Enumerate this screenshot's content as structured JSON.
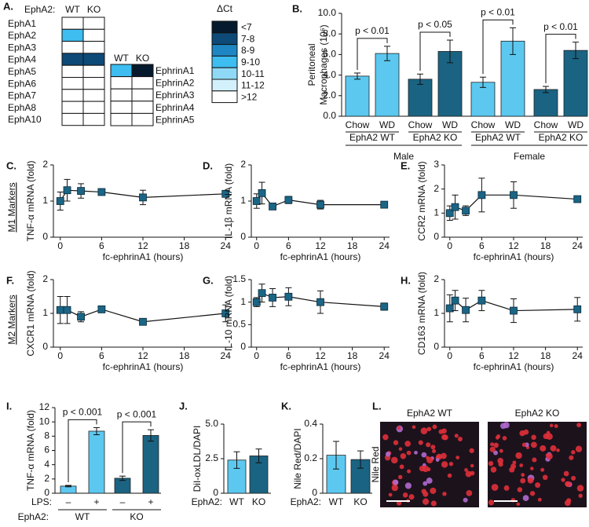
{
  "chart_data": [
    {
      "type": "heatmap",
      "panel": "A.",
      "header": "EphA2:",
      "columns": [
        "WT",
        "KO"
      ],
      "tables": [
        {
          "rows": [
            "EphA1",
            "EphA2",
            "EphA3",
            "EphA4",
            "EphA5",
            "EphA6",
            "EphA7",
            "EphA8",
            "EphA10"
          ],
          "cells": [
            [
              ">12",
              ">12"
            ],
            [
              "9-10",
              ">12"
            ],
            [
              ">12",
              ">12"
            ],
            [
              "7-8",
              "7-8"
            ],
            [
              ">12",
              ">12"
            ],
            [
              ">12",
              ">12"
            ],
            [
              ">12",
              ">12"
            ],
            [
              ">12",
              ">12"
            ],
            [
              ">12",
              ">12"
            ]
          ]
        },
        {
          "rows": [
            "EphrinA1",
            "EphrinA2",
            "EphrinA3",
            "EphrinA4",
            "EphrinA5"
          ],
          "cells": [
            [
              "9-10",
              "<7"
            ],
            [
              ">12",
              ">12"
            ],
            [
              ">12",
              ">12"
            ],
            [
              ">12",
              ">12"
            ],
            [
              ">12",
              ">12"
            ]
          ]
        }
      ],
      "legend_title": "ΔCt",
      "legend": [
        {
          "label": "<7",
          "color": "#061a2e"
        },
        {
          "label": "7-8",
          "color": "#0d4a78"
        },
        {
          "label": "8-9",
          "color": "#1e86c3"
        },
        {
          "label": "9-10",
          "color": "#3dbdf0"
        },
        {
          "label": "10-11",
          "color": "#8fd9f6"
        },
        {
          "label": "11-12",
          "color": "#d3f1fc"
        },
        {
          "label": ">12",
          "color": "#ffffff"
        }
      ]
    },
    {
      "type": "bar",
      "panel": "B.",
      "ylabel": [
        "Peritoneal",
        "Macrophages (10⁶)"
      ],
      "categories": [
        "Chow",
        "WD",
        "Chow",
        "WD",
        "Chow",
        "WD",
        "Chow",
        "WD"
      ],
      "values": [
        3.9,
        6.1,
        3.6,
        6.3,
        3.3,
        7.3,
        2.6,
        6.4
      ],
      "errors": [
        0.3,
        0.7,
        0.5,
        1.1,
        0.5,
        1.3,
        0.3,
        0.8
      ],
      "colors": [
        "#5cc8f0",
        "#5cc8f0",
        "#1a6382",
        "#1a6382",
        "#5cc8f0",
        "#5cc8f0",
        "#1a6382",
        "#1a6382"
      ],
      "ylim": [
        0,
        10
      ],
      "yticks": [
        {
          "value": 0,
          "label": "0.0"
        },
        {
          "value": 2,
          "label": "2.0"
        },
        {
          "value": 4,
          "label": "4.0"
        },
        {
          "value": 6,
          "label": "6.0"
        },
        {
          "value": 8,
          "label": "8.0"
        },
        {
          "value": 10,
          "label": "10.0"
        }
      ],
      "genotypes": [
        "EphA2 WT",
        "EphA2 KO",
        "EphA2 WT",
        "EphA2 KO"
      ],
      "sexes": [
        "Male",
        "Female"
      ],
      "annotations": [
        "p < 0.01",
        "p < 0.05",
        "p < 0.01",
        "p < 0.01"
      ]
    },
    {
      "type": "line",
      "panel": "C.",
      "group_label": "M1 Markers",
      "ylabel": "TNF-α mRNA (fold)",
      "xlabel": "fc-ephrinA1 (hours)",
      "x": [
        0,
        1,
        3,
        6,
        12,
        24
      ],
      "values": [
        1.0,
        1.3,
        1.28,
        1.25,
        1.1,
        1.2
      ],
      "errors": [
        0.25,
        0.3,
        0.2,
        0.07,
        0.2,
        0.05
      ],
      "color": "#1b6585",
      "xlim": [
        -1,
        25
      ],
      "xticks": [
        0,
        6,
        12,
        18,
        24
      ],
      "ylim": [
        0,
        2
      ],
      "yticks": [
        0,
        1,
        2
      ]
    },
    {
      "type": "line",
      "panel": "D.",
      "ylabel": "IL-1β mRNA (fold)",
      "xlabel": "fc-ephrinA1 (hours)",
      "x": [
        0,
        1,
        3,
        6,
        12,
        24
      ],
      "values": [
        1.0,
        1.22,
        0.85,
        1.03,
        0.9,
        0.9
      ],
      "errors": [
        0.2,
        0.3,
        0.05,
        0.1,
        0.12,
        0.05
      ],
      "color": "#1b6585",
      "xlim": [
        -1,
        25
      ],
      "xticks": [
        0,
        6,
        12,
        18,
        24
      ],
      "ylim": [
        0,
        2
      ],
      "yticks": [
        0,
        1,
        2
      ]
    },
    {
      "type": "line",
      "panel": "E.",
      "ylabel": "CCR2 mRNA (fold)",
      "xlabel": "fc-ephrinA1 (hours)",
      "x": [
        0,
        1,
        3,
        6,
        12,
        24
      ],
      "values": [
        1.0,
        1.25,
        1.1,
        1.75,
        1.75,
        1.58
      ],
      "errors": [
        0.3,
        0.5,
        0.2,
        0.7,
        0.55,
        0.1
      ],
      "color": "#1b6585",
      "xlim": [
        -1,
        25
      ],
      "xticks": [
        0,
        6,
        12,
        18,
        24
      ],
      "ylim": [
        0,
        3
      ],
      "yticks": [
        0,
        1,
        2,
        3
      ]
    },
    {
      "type": "line",
      "panel": "F.",
      "group_label": "M2 Markers",
      "ylabel": "CXCR1 mRNA (fold)",
      "xlabel": "fc-ephrinA1 (hours)",
      "x": [
        0,
        1,
        3,
        6,
        12,
        24
      ],
      "values": [
        1.1,
        1.1,
        0.9,
        1.12,
        0.75,
        1.0
      ],
      "errors": [
        0.4,
        0.4,
        0.15,
        0.1,
        0.05,
        0.25
      ],
      "color": "#1b6585",
      "xlim": [
        -1,
        25
      ],
      "xticks": [
        0,
        6,
        12,
        18,
        24
      ],
      "ylim": [
        0,
        2
      ],
      "yticks": [
        0,
        1,
        2
      ]
    },
    {
      "type": "line",
      "panel": "G.",
      "ylabel": "IL-10 mRNA (fold)",
      "xlabel": "fc-ephrinA1 (hours)",
      "x": [
        0,
        1,
        3,
        6,
        12,
        24
      ],
      "values": [
        1.0,
        1.2,
        1.1,
        1.12,
        1.0,
        0.9
      ],
      "errors": [
        0.1,
        0.2,
        0.2,
        0.2,
        0.25,
        0.08
      ],
      "color": "#1b6585",
      "xlim": [
        -1,
        25
      ],
      "xticks": [
        0,
        6,
        12,
        18,
        24
      ],
      "ylim": [
        0,
        1.5
      ],
      "yticks": [
        0,
        0.5,
        1,
        1.5
      ]
    },
    {
      "type": "line",
      "panel": "H.",
      "ylabel": "CD163 mRNA (fold)",
      "xlabel": "fc-ephrinA1 (hours)",
      "x": [
        0,
        1,
        3,
        6,
        12,
        24
      ],
      "values": [
        1.15,
        1.38,
        1.1,
        1.38,
        1.08,
        1.12
      ],
      "errors": [
        0.4,
        0.3,
        0.35,
        0.3,
        0.35,
        0.35
      ],
      "color": "#1b6585",
      "xlim": [
        -1,
        25
      ],
      "xticks": [
        0,
        6,
        12,
        18,
        24
      ],
      "ylim": [
        0,
        2
      ],
      "yticks": [
        0,
        1,
        2
      ]
    },
    {
      "type": "bar",
      "panel": "I.",
      "ylabel": "TNF-α mRNA (fold)",
      "treatment_label": "LPS:",
      "categories": [
        "–",
        "+",
        "–",
        "+"
      ],
      "values": [
        1.0,
        8.7,
        2.1,
        8.1
      ],
      "errors": [
        0.1,
        0.5,
        0.3,
        0.8
      ],
      "colors": [
        "#5cc8f0",
        "#5cc8f0",
        "#1a6382",
        "#1a6382"
      ],
      "ylim": [
        0,
        12
      ],
      "yticks": [
        0,
        2,
        4,
        6,
        8,
        10,
        12
      ],
      "group_label": "EphA2:",
      "groups": [
        "WT",
        "KO"
      ],
      "annotations": [
        "p < 0.001",
        "p < 0.001"
      ]
    },
    {
      "type": "bar",
      "panel": "J.",
      "ylabel": "DiI-oxLDL/DAPI",
      "group_label": "EphA2:",
      "categories": [
        "WT",
        "KO"
      ],
      "values": [
        2.4,
        2.7
      ],
      "errors": [
        0.6,
        0.5
      ],
      "colors": [
        "#5cc8f0",
        "#1a6382"
      ],
      "ylim": [
        0,
        5
      ],
      "yticks": [
        0,
        2.5,
        {
          "value": 5,
          "label": "5.0"
        }
      ]
    },
    {
      "type": "bar",
      "panel": "K.",
      "ylabel": "Nile Red/DAPI",
      "group_label": "EphA2:",
      "categories": [
        "WT",
        "KO"
      ],
      "values": [
        0.22,
        0.195
      ],
      "errors": [
        0.08,
        0.05
      ],
      "colors": [
        "#5cc8f0",
        "#1a6382"
      ],
      "ylim": [
        0,
        0.4
      ],
      "yticks": [
        0,
        0.2,
        0.4
      ]
    },
    {
      "type": "image",
      "panel": "L.",
      "titles": [
        "EphA2 WT",
        "EphA2 KO"
      ],
      "ylabel": "Nile Red"
    }
  ]
}
